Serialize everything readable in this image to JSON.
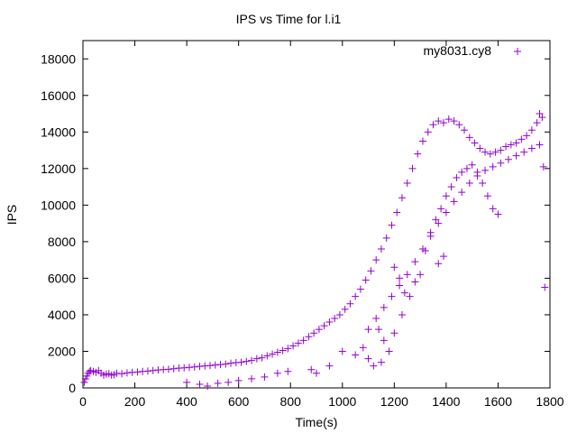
{
  "chart_data": {
    "type": "scatter",
    "title": "IPS vs Time for l.i1",
    "xlabel": "Time(s)",
    "ylabel": "IPS",
    "xlim": [
      0,
      1800
    ],
    "ylim": [
      0,
      19000
    ],
    "x_ticks": [
      "0",
      "200",
      "400",
      "600",
      "800",
      "1000",
      "1200",
      "1400",
      "1600",
      "1800"
    ],
    "y_ticks": [
      "0",
      "2000",
      "4000",
      "6000",
      "8000",
      "10000",
      "12000",
      "14000",
      "16000",
      "18000"
    ],
    "grid": false,
    "legend_position": "top-right",
    "marker": "plus",
    "series": [
      {
        "name": "my8031.cy8",
        "color": "#9400d3",
        "points": [
          [
            5,
            300
          ],
          [
            10,
            500
          ],
          [
            15,
            650
          ],
          [
            20,
            800
          ],
          [
            25,
            900
          ],
          [
            30,
            950
          ],
          [
            40,
            900
          ],
          [
            50,
            850
          ],
          [
            60,
            950
          ],
          [
            70,
            800
          ],
          [
            80,
            700
          ],
          [
            90,
            750
          ],
          [
            100,
            780
          ],
          [
            110,
            700
          ],
          [
            120,
            720
          ],
          [
            130,
            800
          ],
          [
            150,
            780
          ],
          [
            170,
            820
          ],
          [
            190,
            850
          ],
          [
            210,
            870
          ],
          [
            230,
            900
          ],
          [
            250,
            920
          ],
          [
            270,
            950
          ],
          [
            290,
            980
          ],
          [
            310,
            1000
          ],
          [
            330,
            1020
          ],
          [
            350,
            1050
          ],
          [
            370,
            1080
          ],
          [
            390,
            1100
          ],
          [
            410,
            1120
          ],
          [
            430,
            1150
          ],
          [
            450,
            1180
          ],
          [
            470,
            1200
          ],
          [
            490,
            1220
          ],
          [
            510,
            1250
          ],
          [
            530,
            1280
          ],
          [
            550,
            1300
          ],
          [
            570,
            1350
          ],
          [
            590,
            1380
          ],
          [
            610,
            1400
          ],
          [
            630,
            1450
          ],
          [
            650,
            1500
          ],
          [
            670,
            1600
          ],
          [
            690,
            1650
          ],
          [
            710,
            1750
          ],
          [
            730,
            1850
          ],
          [
            750,
            1950
          ],
          [
            770,
            2050
          ],
          [
            790,
            2150
          ],
          [
            810,
            2300
          ],
          [
            830,
            2450
          ],
          [
            850,
            2600
          ],
          [
            870,
            2800
          ],
          [
            890,
            3000
          ],
          [
            910,
            3200
          ],
          [
            930,
            3400
          ],
          [
            950,
            3600
          ],
          [
            970,
            3800
          ],
          [
            990,
            4000
          ],
          [
            1010,
            4300
          ],
          [
            1030,
            4600
          ],
          [
            1050,
            5000
          ],
          [
            1070,
            5400
          ],
          [
            1090,
            5900
          ],
          [
            1110,
            6400
          ],
          [
            1130,
            7000
          ],
          [
            1150,
            7600
          ],
          [
            1170,
            8200
          ],
          [
            1190,
            8900
          ],
          [
            1210,
            9600
          ],
          [
            1230,
            10400
          ],
          [
            1250,
            11200
          ],
          [
            1270,
            12000
          ],
          [
            1290,
            12800
          ],
          [
            1310,
            13500
          ],
          [
            1330,
            14000
          ],
          [
            1350,
            14400
          ],
          [
            1370,
            14600
          ],
          [
            1390,
            14500
          ],
          [
            1410,
            14700
          ],
          [
            1430,
            14600
          ],
          [
            1450,
            14400
          ],
          [
            1470,
            14100
          ],
          [
            1490,
            13700
          ],
          [
            1510,
            13400
          ],
          [
            1530,
            13100
          ],
          [
            1550,
            12900
          ],
          [
            1570,
            12800
          ],
          [
            1590,
            12900
          ],
          [
            1610,
            13000
          ],
          [
            1630,
            13200
          ],
          [
            1650,
            13300
          ],
          [
            1670,
            13400
          ],
          [
            1690,
            13600
          ],
          [
            1710,
            13800
          ],
          [
            1730,
            14100
          ],
          [
            1750,
            14500
          ],
          [
            1760,
            15000
          ],
          [
            1770,
            14800
          ],
          [
            1775,
            12100
          ],
          [
            1780,
            5500
          ],
          [
            400,
            300
          ],
          [
            450,
            200
          ],
          [
            480,
            100
          ],
          [
            520,
            250
          ],
          [
            560,
            300
          ],
          [
            600,
            400
          ],
          [
            650,
            500
          ],
          [
            700,
            600
          ],
          [
            750,
            800
          ],
          [
            790,
            900
          ],
          [
            880,
            1000
          ],
          [
            900,
            800
          ],
          [
            950,
            1200
          ],
          [
            1000,
            2000
          ],
          [
            1050,
            1800
          ],
          [
            1080,
            2200
          ],
          [
            1100,
            1600
          ],
          [
            1120,
            1200
          ],
          [
            1150,
            1400
          ],
          [
            1180,
            2000
          ],
          [
            1200,
            3000
          ],
          [
            1230,
            4000
          ],
          [
            1260,
            5000
          ],
          [
            1280,
            5800
          ],
          [
            1300,
            6200
          ],
          [
            1320,
            7500
          ],
          [
            1340,
            8500
          ],
          [
            1360,
            9200
          ],
          [
            1380,
            9800
          ],
          [
            1400,
            10500
          ],
          [
            1420,
            11000
          ],
          [
            1440,
            11500
          ],
          [
            1460,
            11800
          ],
          [
            1480,
            12000
          ],
          [
            1500,
            12200
          ],
          [
            1520,
            11800
          ],
          [
            1540,
            11200
          ],
          [
            1560,
            10500
          ],
          [
            1580,
            9800
          ],
          [
            1600,
            9500
          ],
          [
            1100,
            3200
          ],
          [
            1130,
            3800
          ],
          [
            1160,
            4400
          ],
          [
            1190,
            5000
          ],
          [
            1220,
            5600
          ],
          [
            1250,
            6200
          ],
          [
            1280,
            6900
          ],
          [
            1310,
            7600
          ],
          [
            1340,
            8300
          ],
          [
            1370,
            9000
          ],
          [
            1400,
            9600
          ],
          [
            1430,
            10200
          ],
          [
            1460,
            10700
          ],
          [
            1490,
            11200
          ],
          [
            1520,
            11600
          ],
          [
            1550,
            11900
          ],
          [
            1580,
            12100
          ],
          [
            1610,
            12300
          ],
          [
            1640,
            12500
          ],
          [
            1670,
            12700
          ],
          [
            1700,
            12900
          ],
          [
            1730,
            13100
          ],
          [
            1760,
            13300
          ],
          [
            1370,
            6800
          ],
          [
            1390,
            7200
          ],
          [
            1200,
            6600
          ],
          [
            1220,
            6000
          ],
          [
            1240,
            5200
          ],
          [
            1140,
            3200
          ],
          [
            1160,
            2600
          ]
        ]
      }
    ]
  }
}
